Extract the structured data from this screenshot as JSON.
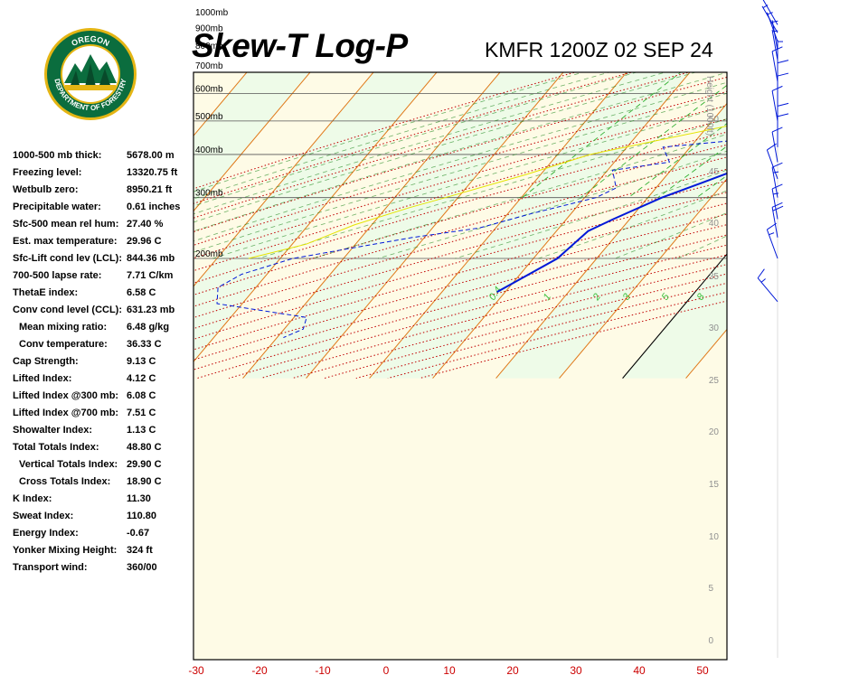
{
  "header": {
    "title": "Skew-T Log-P",
    "subtitle": "KMFR 1200Z 02 SEP 24"
  },
  "logo": {
    "top_text": "OREGON",
    "ring_text": "DEPARTMENT OF FORESTRY",
    "colors": {
      "ring": "#0b6d3e",
      "gold": "#e4b514"
    }
  },
  "stats": [
    {
      "label": "1000-500 mb thick:",
      "value": "5678.00 m",
      "indent": false
    },
    {
      "label": "Freezing level:",
      "value": "13320.75 ft",
      "indent": false
    },
    {
      "label": "Wetbulb zero:",
      "value": "8950.21 ft",
      "indent": false
    },
    {
      "label": "Precipitable water:",
      "value": "0.61 inches",
      "indent": false
    },
    {
      "label": "Sfc-500 mean rel hum:",
      "value": "27.40 %",
      "indent": false
    },
    {
      "label": "Est. max temperature:",
      "value": "29.96 C",
      "indent": false
    },
    {
      "label": "Sfc-Lift cond lev (LCL):",
      "value": "844.36 mb",
      "indent": false
    },
    {
      "label": "700-500 lapse rate:",
      "value": "7.71 C/km",
      "indent": false
    },
    {
      "label": "ThetaE index:",
      "value": "6.58 C",
      "indent": false
    },
    {
      "label": "Conv cond level (CCL):",
      "value": "631.23 mb",
      "indent": false
    },
    {
      "label": "Mean mixing ratio:",
      "value": "6.48 g/kg",
      "indent": true
    },
    {
      "label": "Conv temperature:",
      "value": "36.33 C",
      "indent": true
    },
    {
      "label": "Cap Strength:",
      "value": "9.13 C",
      "indent": false
    },
    {
      "label": "Lifted Index:",
      "value": "4.12 C",
      "indent": false
    },
    {
      "label": "Lifted Index @300 mb:",
      "value": "6.08 C",
      "indent": false
    },
    {
      "label": "Lifted Index @700 mb:",
      "value": "7.51 C",
      "indent": false
    },
    {
      "label": "Showalter Index:",
      "value": "1.13 C",
      "indent": false
    },
    {
      "label": "Total Totals Index:",
      "value": "48.80 C",
      "indent": false
    },
    {
      "label": "Vertical Totals Index:",
      "value": "29.90 C",
      "indent": true
    },
    {
      "label": "Cross Totals Index:",
      "value": "18.90 C",
      "indent": true
    },
    {
      "label": "K Index:",
      "value": "11.30",
      "indent": false
    },
    {
      "label": "Sweat Index:",
      "value": "110.80",
      "indent": false
    },
    {
      "label": "Energy Index:",
      "value": "-0.67",
      "indent": false
    },
    {
      "label": "Yonker Mixing Height:",
      "value": "324 ft",
      "indent": false
    },
    {
      "label": "Transport wind:",
      "value": "360/00",
      "indent": false
    }
  ],
  "chart_data": {
    "type": "skew-t",
    "x_ticks": [
      -30,
      -20,
      -10,
      0,
      10,
      20,
      30,
      40,
      50
    ],
    "x_unit": "C",
    "pressure_lines": [
      200,
      300,
      400,
      500,
      600,
      700,
      800,
      900,
      1000
    ],
    "pressure_label_suffix": "mb",
    "height_axis_label": "Height\n(1000ft)",
    "height_ticks": [
      0,
      5,
      10,
      15,
      20,
      25,
      30,
      35,
      40,
      45,
      50
    ],
    "mixing_ratio_labels": [
      "0.4",
      "1",
      "2",
      "3",
      "5",
      "8"
    ],
    "temperature_profile": [
      {
        "p": 950,
        "t": 23.6
      },
      {
        "p": 945,
        "t": 25.2
      },
      {
        "p": 930,
        "t": 25.4
      },
      {
        "p": 925,
        "t": 26.6
      },
      {
        "p": 900,
        "t": 26.4
      },
      {
        "p": 880,
        "t": 26.6
      },
      {
        "p": 860,
        "t": 28.6
      },
      {
        "p": 840,
        "t": 28.3
      },
      {
        "p": 800,
        "t": 27.4
      },
      {
        "p": 760,
        "t": 25.6
      },
      {
        "p": 700,
        "t": 22.4
      },
      {
        "p": 620,
        "t": 16.6
      },
      {
        "p": 520,
        "t": 8.4
      },
      {
        "p": 440,
        "t": 0.2
      },
      {
        "p": 380,
        "t": -7.4
      },
      {
        "p": 330,
        "t": -13.6
      },
      {
        "p": 300,
        "t": -17.8
      },
      {
        "p": 260,
        "t": -22.6
      },
      {
        "p": 240,
        "t": -25.0
      },
      {
        "p": 200,
        "t": -26.2
      },
      {
        "p": 160,
        "t": -31.3
      }
    ],
    "dewpoint_profile": [
      {
        "p": 950,
        "t": 3.1
      },
      {
        "p": 930,
        "t": 3.2
      },
      {
        "p": 910,
        "t": 3.2
      },
      {
        "p": 880,
        "t": 13.6
      },
      {
        "p": 865,
        "t": 12.0
      },
      {
        "p": 855,
        "t": 4.6
      },
      {
        "p": 835,
        "t": 2.0
      },
      {
        "p": 825,
        "t": 0.2
      },
      {
        "p": 800,
        "t": -8.7
      },
      {
        "p": 770,
        "t": -12.5
      },
      {
        "p": 760,
        "t": -12.0
      },
      {
        "p": 720,
        "t": -9.3
      },
      {
        "p": 690,
        "t": -11.8
      },
      {
        "p": 640,
        "t": -11.3
      },
      {
        "p": 600,
        "t": -11.4
      },
      {
        "p": 560,
        "t": -10.9
      },
      {
        "p": 545,
        "t": -18.2
      },
      {
        "p": 520,
        "t": -14.8
      },
      {
        "p": 500,
        "t": -8.4
      },
      {
        "p": 480,
        "t": -4.7
      },
      {
        "p": 460,
        "t": -14.8
      },
      {
        "p": 440,
        "t": -13.5
      },
      {
        "p": 420,
        "t": -24.3
      },
      {
        "p": 380,
        "t": -21.3
      },
      {
        "p": 360,
        "t": -29.2
      },
      {
        "p": 320,
        "t": -26.3
      },
      {
        "p": 300,
        "t": -28.2
      },
      {
        "p": 270,
        "t": -36.2
      },
      {
        "p": 245,
        "t": -42.6
      },
      {
        "p": 230,
        "t": -51.9
      },
      {
        "p": 200,
        "t": -68.0
      },
      {
        "p": 180,
        "t": -74.0
      },
      {
        "p": 165,
        "t": -76.0
      },
      {
        "p": 148,
        "t": -74.0
      },
      {
        "p": 135,
        "t": -58.0
      },
      {
        "p": 125,
        "t": -57.0
      },
      {
        "p": 118,
        "t": -59.0
      }
    ],
    "parcel_path": [
      {
        "p": 950,
        "t": 23.6
      },
      {
        "p": 900,
        "t": 20.3
      },
      {
        "p": 850,
        "t": 19.2
      },
      {
        "p": 800,
        "t": 16.4
      },
      {
        "p": 700,
        "t": 8.6
      },
      {
        "p": 600,
        "t": -0.6
      },
      {
        "p": 500,
        "t": -13.8
      },
      {
        "p": 400,
        "t": -34.8
      },
      {
        "p": 350,
        "t": -42.3
      },
      {
        "p": 300,
        "t": -52.0
      },
      {
        "p": 280,
        "t": -56.5
      },
      {
        "p": 250,
        "t": -62.8
      },
      {
        "p": 220,
        "t": -67.8
      },
      {
        "p": 200,
        "t": -75.0
      }
    ],
    "wind_barbs": [
      {
        "p": 950,
        "dir": 330,
        "spd": 10
      },
      {
        "p": 900,
        "dir": 330,
        "spd": 5
      },
      {
        "p": 850,
        "dir": 340,
        "spd": 5
      },
      {
        "p": 800,
        "dir": 350,
        "spd": 5
      },
      {
        "p": 750,
        "dir": 350,
        "spd": 5
      },
      {
        "p": 700,
        "dir": 360,
        "spd": 5
      },
      {
        "p": 650,
        "dir": 350,
        "spd": 10
      },
      {
        "p": 600,
        "dir": 360,
        "spd": 10
      },
      {
        "p": 550,
        "dir": 360,
        "spd": 10
      },
      {
        "p": 500,
        "dir": 350,
        "spd": 10
      },
      {
        "p": 450,
        "dir": 360,
        "spd": 10
      },
      {
        "p": 420,
        "dir": 360,
        "spd": 10
      },
      {
        "p": 380,
        "dir": 350,
        "spd": 10
      },
      {
        "p": 340,
        "dir": 340,
        "spd": 10
      },
      {
        "p": 300,
        "dir": 350,
        "spd": 15
      },
      {
        "p": 260,
        "dir": 350,
        "spd": 15
      },
      {
        "p": 230,
        "dir": 350,
        "spd": 20
      },
      {
        "p": 200,
        "dir": 340,
        "spd": 15
      },
      {
        "p": 150,
        "dir": 320,
        "spd": 15
      }
    ],
    "colors": {
      "temperature": "#0018d8",
      "dewpoint": "#0018d8",
      "parcel": "#e4e400",
      "isotherm": "#e07818",
      "dry_adiabat": "#c00000",
      "moist_adiabat": "#108010",
      "mixing_ratio": "#30b030",
      "zero_isotherm": "#000000",
      "band_green": "#eefbe8",
      "band_cream": "#fefbe6",
      "axis_tick": "#cc0000",
      "height_label": "#909090"
    }
  }
}
